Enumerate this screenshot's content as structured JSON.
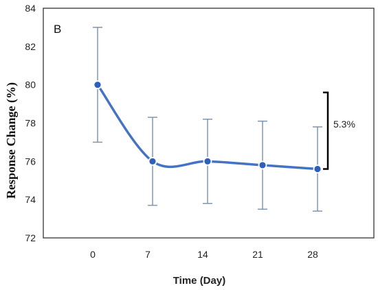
{
  "chart_data": {
    "type": "line",
    "panel_label": "B",
    "xlabel": "Time (Day)",
    "ylabel": "Response Change  (%)",
    "categories": [
      "0",
      "7",
      "14",
      "21",
      "28"
    ],
    "values": [
      80.0,
      76.0,
      76.0,
      75.8,
      75.6
    ],
    "error_upper": [
      83.0,
      78.3,
      78.2,
      78.1,
      77.8
    ],
    "error_lower": [
      77.0,
      73.7,
      73.8,
      73.5,
      73.4
    ],
    "ylim": [
      72,
      84
    ],
    "yticks": [
      "72",
      "74",
      "76",
      "78",
      "80",
      "82",
      "84"
    ],
    "annotation": "5.3%",
    "annotation_range": [
      75.6,
      79.6
    ],
    "grid": false,
    "colors": {
      "line": "#4472c4",
      "marker": "#2f5fbd",
      "error_bar": "#7f95ad",
      "bracket": "#000000"
    }
  }
}
